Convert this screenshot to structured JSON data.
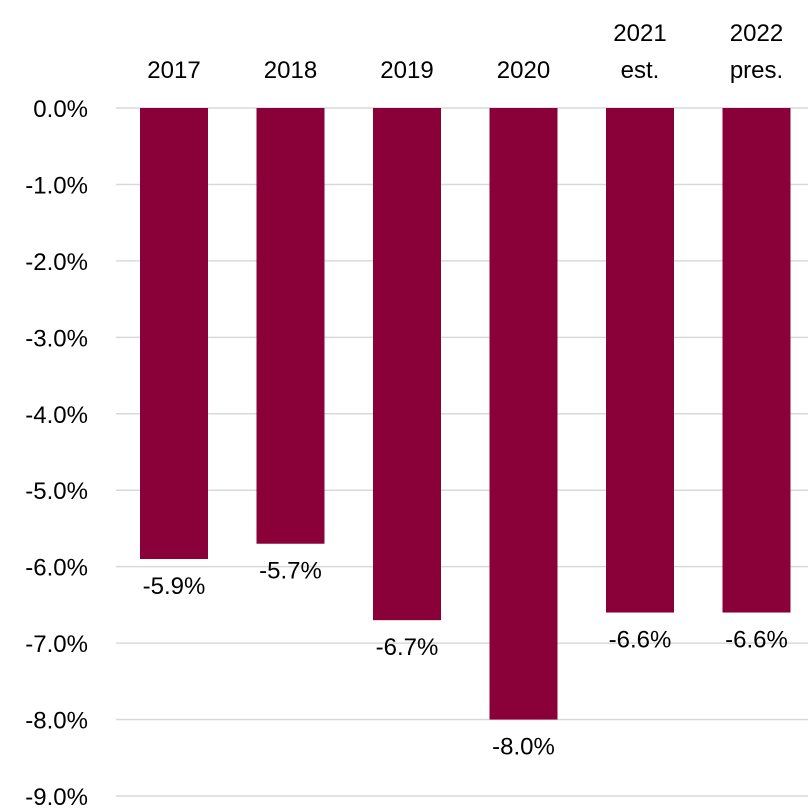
{
  "chart_data": {
    "type": "bar",
    "orientation": "vertical",
    "categories": [
      [
        "2017"
      ],
      [
        "2018"
      ],
      [
        "2019"
      ],
      [
        "2020"
      ],
      [
        "2021",
        "est."
      ],
      [
        "2022",
        "pres."
      ]
    ],
    "values": [
      -5.9,
      -5.7,
      -6.7,
      -8.0,
      -6.6,
      -6.6
    ],
    "data_labels": [
      "-5.9%",
      "-5.7%",
      "-6.7%",
      "-8.0%",
      "-6.6%",
      "-6.6%"
    ],
    "y_ticks": [
      0,
      -1,
      -2,
      -3,
      -4,
      -5,
      -6,
      -7,
      -8,
      -9
    ],
    "y_tick_labels": [
      "0.0%",
      "-1.0%",
      "-2.0%",
      "-3.0%",
      "-4.0%",
      "-5.0%",
      "-6.0%",
      "-7.0%",
      "-8.0%",
      "-9.0%"
    ],
    "ylim": [
      -9,
      0
    ],
    "unit": "%",
    "grid": true,
    "category_labels_position": "top",
    "legend": "none",
    "title": "",
    "xlabel": "",
    "ylabel": "",
    "colors": {
      "bar": "#8a0038",
      "grid": "#d9d9d9",
      "text": "#000000"
    }
  }
}
